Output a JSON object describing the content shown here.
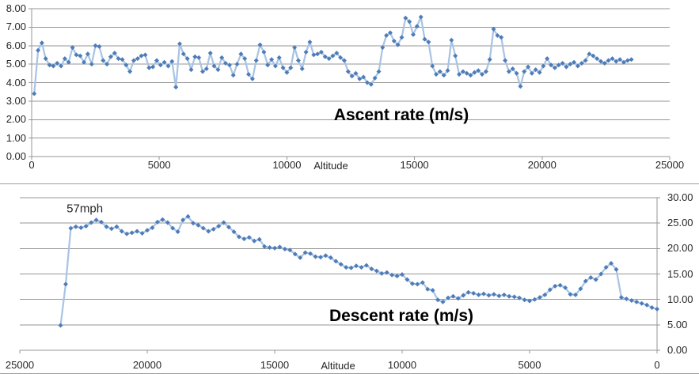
{
  "chart_data": [
    {
      "type": "line",
      "title": "Ascent rate (m/s)",
      "xlabel": "Altitude",
      "legend": "none",
      "grid": "horizontal",
      "x_axis": {
        "min": 0,
        "max": 25000,
        "reversed": false,
        "tick_values": [
          0,
          5000,
          10000,
          15000,
          20000,
          25000
        ],
        "tick_labels": [
          "0",
          "5000",
          "10000",
          "15000",
          "20000",
          "25000"
        ]
      },
      "y_axis": {
        "side": "left",
        "min": 0,
        "max": 8,
        "tick_values": [
          8,
          7,
          6,
          5,
          4,
          3,
          2,
          1,
          0
        ],
        "tick_labels": [
          "8.00",
          "7.00",
          "6.00",
          "5.00",
          "4.00",
          "3.00",
          "2.00",
          "1.00",
          "0.00"
        ]
      },
      "series": [
        {
          "name": "Ascent rate (m/s)",
          "x_start": 100,
          "x_step": 150,
          "x_end": 23500,
          "y": [
            3.4,
            5.75,
            6.15,
            5.3,
            4.95,
            4.9,
            5.05,
            4.9,
            5.3,
            5.1,
            5.9,
            5.5,
            5.45,
            5.1,
            5.55,
            5.0,
            6.0,
            5.95,
            5.2,
            5.0,
            5.4,
            5.6,
            5.3,
            5.25,
            4.95,
            4.6,
            5.2,
            5.3,
            5.45,
            5.5,
            4.8,
            4.85,
            5.2,
            4.95,
            5.1,
            4.9,
            5.15,
            3.75,
            6.1,
            5.55,
            5.3,
            4.7,
            5.4,
            5.35,
            4.6,
            4.75,
            5.6,
            4.9,
            4.7,
            5.35,
            5.05,
            4.95,
            4.4,
            5.0,
            5.55,
            5.3,
            4.45,
            4.2,
            5.2,
            6.05,
            5.65,
            4.95,
            5.25,
            4.9,
            5.35,
            4.8,
            4.55,
            4.8,
            5.9,
            5.2,
            4.75,
            5.65,
            6.2,
            5.5,
            5.55,
            5.65,
            5.4,
            5.3,
            5.45,
            5.6,
            5.35,
            5.2,
            4.6,
            4.35,
            4.5,
            4.2,
            4.3,
            4.0,
            3.9,
            4.25,
            4.6,
            5.9,
            6.55,
            6.7,
            6.25,
            6.05,
            6.45,
            7.5,
            7.3,
            6.6,
            7.05,
            7.55,
            6.35,
            6.2,
            4.9,
            4.45,
            4.6,
            4.4,
            4.65,
            6.3,
            5.45,
            4.45,
            4.6,
            4.5,
            4.4,
            4.55,
            4.65,
            4.45,
            4.6,
            5.25,
            6.9,
            6.55,
            6.45,
            5.2,
            4.6,
            4.75,
            4.5,
            3.8,
            4.6,
            4.85,
            4.5,
            4.7,
            4.55,
            4.9,
            5.3,
            4.95,
            4.8,
            4.95,
            5.05,
            4.85,
            5.0,
            5.1,
            4.9,
            5.05,
            5.2,
            5.55,
            5.45,
            5.3,
            5.15,
            5.05,
            5.2,
            5.3,
            5.15,
            5.25,
            5.1,
            5.2,
            5.25
          ]
        }
      ],
      "colors": {
        "line": "#a9c4e4",
        "marker": "#4e7cb8",
        "grid": "#969696",
        "text": "#262626",
        "title": "#000000"
      }
    },
    {
      "type": "line",
      "title": "Descent rate (m/s)",
      "xlabel": "Altitude",
      "legend": "none",
      "grid": "horizontal",
      "annotation": {
        "text": "57mph",
        "x": 22450,
        "y": 27.8
      },
      "x_axis": {
        "min": 0,
        "max": 25000,
        "reversed": true,
        "tick_values": [
          25000,
          20000,
          15000,
          10000,
          5000,
          0
        ],
        "tick_labels": [
          "25000",
          "20000",
          "15000",
          "10000",
          "5000",
          "0"
        ]
      },
      "y_axis": {
        "side": "right",
        "min": 0,
        "max": 30,
        "tick_values": [
          30,
          25,
          20,
          15,
          10,
          5,
          0
        ],
        "tick_labels": [
          "30.00",
          "25.00",
          "20.00",
          "15.00",
          "10.00",
          "5.00",
          "0.00"
        ]
      },
      "series": [
        {
          "name": "Descent rate (m/s)",
          "x_start": 23400,
          "x_step": -200,
          "x_end": 0,
          "y": [
            4.9,
            13.0,
            24.0,
            24.3,
            24.1,
            24.4,
            25.1,
            25.6,
            25.2,
            24.3,
            23.9,
            24.3,
            23.4,
            22.9,
            23.1,
            23.4,
            23.0,
            23.6,
            24.1,
            25.2,
            25.7,
            25.1,
            24.0,
            23.3,
            25.6,
            26.3,
            25.0,
            24.6,
            24.0,
            23.4,
            23.8,
            24.4,
            25.1,
            24.2,
            23.3,
            22.3,
            21.9,
            22.2,
            21.5,
            21.8,
            20.4,
            20.2,
            20.1,
            20.3,
            19.9,
            19.7,
            18.9,
            18.2,
            19.2,
            19.0,
            18.4,
            18.3,
            18.6,
            18.2,
            17.5,
            16.9,
            16.3,
            16.2,
            16.6,
            16.3,
            16.7,
            16.0,
            15.6,
            15.1,
            15.3,
            14.8,
            14.6,
            14.9,
            13.9,
            13.1,
            13.0,
            13.3,
            12.0,
            11.8,
            9.9,
            9.5,
            10.3,
            10.6,
            10.2,
            10.8,
            11.4,
            11.2,
            10.9,
            11.1,
            10.8,
            11.0,
            10.7,
            10.9,
            10.6,
            10.5,
            10.3,
            9.9,
            9.7,
            10.0,
            10.4,
            10.9,
            11.9,
            12.6,
            12.8,
            12.3,
            11.0,
            10.9,
            12.1,
            13.6,
            14.3,
            13.9,
            15.0,
            16.3,
            17.1,
            15.9,
            10.4,
            10.1,
            9.8,
            9.5,
            9.2,
            8.9,
            8.4,
            8.1
          ]
        }
      ],
      "colors": {
        "line": "#a9c4e4",
        "marker": "#4e7cb8",
        "grid": "#969696",
        "text": "#262626",
        "title": "#000000"
      }
    }
  ]
}
